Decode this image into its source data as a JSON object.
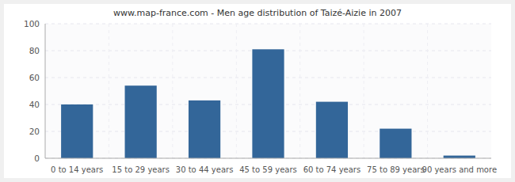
{
  "chart_data": {
    "type": "bar",
    "title": "www.map-france.com - Men age distribution of Taizé-Aizie in 2007",
    "categories": [
      "0 to 14 years",
      "15 to 29 years",
      "30 to 44 years",
      "45 to 59 years",
      "60 to 74 years",
      "75 to 89 years",
      "90 years and more"
    ],
    "values": [
      40,
      54,
      43,
      81,
      42,
      22,
      2
    ],
    "color": "#336699",
    "ylim": [
      0,
      100
    ],
    "yticks": [
      0,
      20,
      40,
      60,
      80,
      100
    ],
    "grid": true
  }
}
